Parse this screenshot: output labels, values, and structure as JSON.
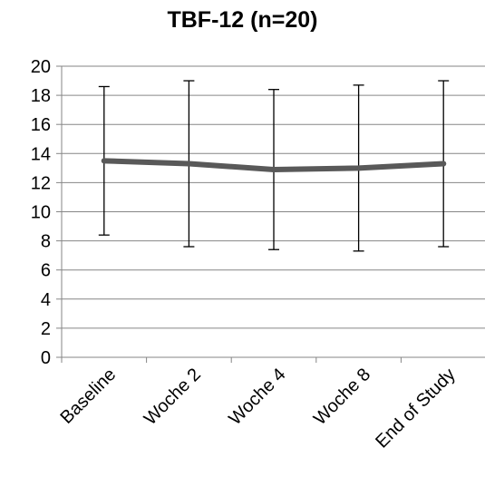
{
  "chart_data": {
    "type": "line",
    "title": "TBF-12 (n=20)",
    "xlabel": "",
    "ylabel": "",
    "categories": [
      "Baseline",
      "Woche 2",
      "Woche 4",
      "Woche 8",
      "End of Study"
    ],
    "series": [
      {
        "values": [
          13.5,
          13.3,
          12.9,
          13.0,
          13.3
        ],
        "error_low": [
          8.4,
          7.6,
          7.4,
          7.3,
          7.6
        ],
        "error_high": [
          18.6,
          19.0,
          18.4,
          18.7,
          19.0
        ],
        "color": "#595959"
      }
    ],
    "ylim": [
      0,
      20
    ],
    "yticks": [
      "0",
      "2",
      "4",
      "6",
      "8",
      "10",
      "12",
      "14",
      "16",
      "18",
      "20"
    ],
    "grid": true,
    "legend": "none"
  },
  "colors": {
    "grid": "#868686",
    "axis": "#868686",
    "line": "#595959",
    "error_bar": "#000000"
  }
}
